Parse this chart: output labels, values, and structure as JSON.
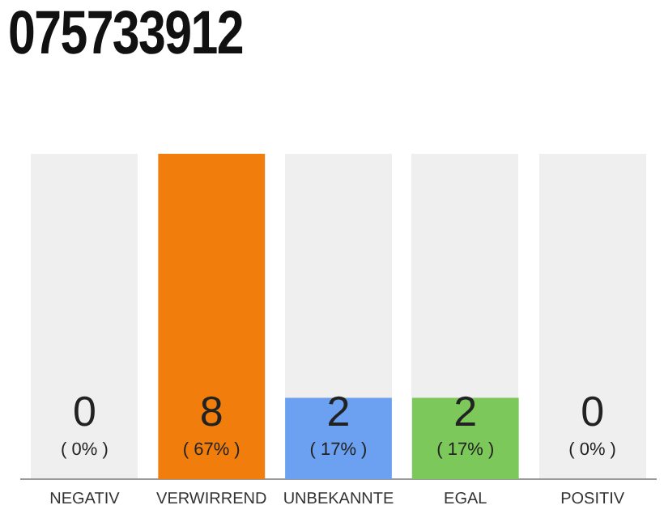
{
  "chart_data": {
    "type": "bar",
    "title": "075733912",
    "categories": [
      "NEGATIV",
      "VERWIRREND",
      "UNBEKANNTE",
      "EGAL",
      "POSITIV"
    ],
    "values": [
      0,
      8,
      2,
      2,
      0
    ],
    "colors": [
      "#eeeeee",
      "#f07d0c",
      "#6ca0f0",
      "#7dc85a",
      "#eeeeee"
    ],
    "ylim": [
      0,
      8
    ],
    "relative": false,
    "data_labels": true,
    "grid": false,
    "legend": false,
    "annotations": [
      {
        "text": "( 0% )",
        "x": "NEGATIV",
        "y": 0
      },
      {
        "text": "( 67% )",
        "x": "VERWIRREND",
        "y": 0
      },
      {
        "text": "( 17% )",
        "x": "UNBEKANNTE",
        "y": 0
      },
      {
        "text": "( 17% )",
        "x": "EGAL",
        "y": 0
      },
      {
        "text": "( 0% )",
        "x": "POSITIV",
        "y": 0
      }
    ]
  }
}
